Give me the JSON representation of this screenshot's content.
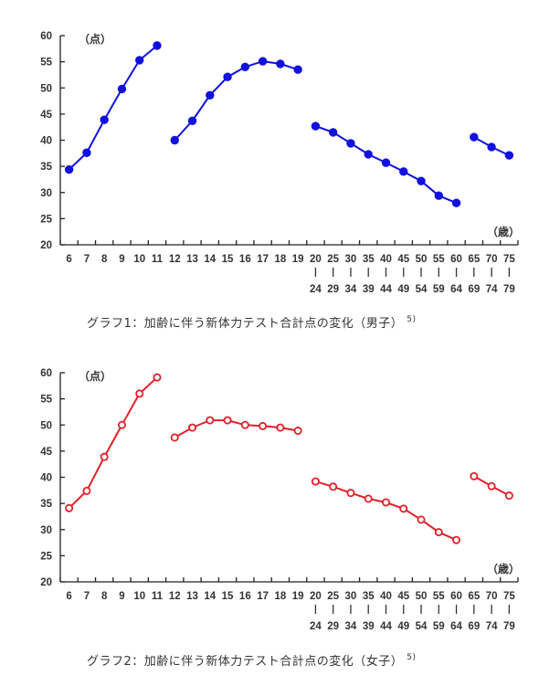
{
  "chart_data": [
    {
      "type": "line",
      "title": "グラフ1：加齢に伴う新体力テスト合計点の変化（男子）",
      "title_superscript": "5)",
      "ylabel": "（点）",
      "xlabel": "（歳）",
      "ylim": [
        20,
        60
      ],
      "yticks": [
        20,
        25,
        30,
        35,
        40,
        45,
        50,
        55,
        60
      ],
      "categories": [
        "6",
        "7",
        "8",
        "9",
        "10",
        "11",
        "12",
        "13",
        "14",
        "15",
        "16",
        "17",
        "18",
        "19",
        "20-24",
        "25-29",
        "30-34",
        "35-39",
        "40-44",
        "45-49",
        "50-54",
        "55-59",
        "60-64",
        "65-69",
        "70-74",
        "75-79"
      ],
      "tick_labels_top": [
        "6",
        "7",
        "8",
        "9",
        "10",
        "11",
        "12",
        "13",
        "14",
        "15",
        "16",
        "17",
        "18",
        "19",
        "20",
        "25",
        "30",
        "35",
        "40",
        "45",
        "50",
        "55",
        "60",
        "65",
        "70",
        "75"
      ],
      "tick_labels_bottom": [
        "",
        "",
        "",
        "",
        "",
        "",
        "",
        "",
        "",
        "",
        "",
        "",
        "",
        "",
        "24",
        "29",
        "34",
        "39",
        "44",
        "49",
        "54",
        "59",
        "64",
        "69",
        "74",
        "79"
      ],
      "color": "#1010e0",
      "marker": "filled-circle",
      "segments": [
        [
          0,
          5
        ],
        [
          6,
          13
        ],
        [
          14,
          22
        ],
        [
          23,
          25
        ]
      ],
      "series": [
        {
          "name": "男子",
          "values": [
            34.4,
            37.6,
            43.9,
            49.8,
            55.3,
            58.1,
            40.0,
            43.7,
            48.6,
            52.1,
            54.0,
            55.1,
            54.6,
            53.5,
            42.7,
            41.5,
            39.4,
            37.3,
            35.7,
            34.0,
            32.2,
            29.4,
            28.0,
            40.6,
            38.7,
            37.1
          ]
        }
      ],
      "grid": false,
      "legend": "none"
    },
    {
      "type": "line",
      "title": "グラフ2：加齢に伴う新体力テスト合計点の変化（女子）",
      "title_superscript": "5)",
      "ylabel": "（点）",
      "xlabel": "（歳）",
      "ylim": [
        20,
        60
      ],
      "yticks": [
        20,
        25,
        30,
        35,
        40,
        45,
        50,
        55,
        60
      ],
      "categories": [
        "6",
        "7",
        "8",
        "9",
        "10",
        "11",
        "12",
        "13",
        "14",
        "15",
        "16",
        "17",
        "18",
        "19",
        "20-24",
        "25-29",
        "30-34",
        "35-39",
        "40-44",
        "45-49",
        "50-54",
        "55-59",
        "60-64",
        "65-69",
        "70-74",
        "75-79"
      ],
      "tick_labels_top": [
        "6",
        "7",
        "8",
        "9",
        "10",
        "11",
        "12",
        "13",
        "14",
        "15",
        "16",
        "17",
        "18",
        "19",
        "20",
        "25",
        "30",
        "35",
        "40",
        "45",
        "50",
        "55",
        "60",
        "65",
        "70",
        "75"
      ],
      "tick_labels_bottom": [
        "",
        "",
        "",
        "",
        "",
        "",
        "",
        "",
        "",
        "",
        "",
        "",
        "",
        "",
        "24",
        "29",
        "34",
        "39",
        "44",
        "49",
        "54",
        "59",
        "64",
        "69",
        "74",
        "79"
      ],
      "color": "#e0202a",
      "marker": "open-circle",
      "segments": [
        [
          0,
          5
        ],
        [
          6,
          13
        ],
        [
          14,
          22
        ],
        [
          23,
          25
        ]
      ],
      "series": [
        {
          "name": "女子",
          "values": [
            34.1,
            37.4,
            43.9,
            50.0,
            56.0,
            59.1,
            47.6,
            49.5,
            50.9,
            50.9,
            50.0,
            49.8,
            49.5,
            48.9,
            39.2,
            38.2,
            37.0,
            35.9,
            35.2,
            34.0,
            31.9,
            29.5,
            28.0,
            40.2,
            38.3,
            36.5
          ]
        }
      ],
      "grid": false,
      "legend": "none"
    }
  ]
}
